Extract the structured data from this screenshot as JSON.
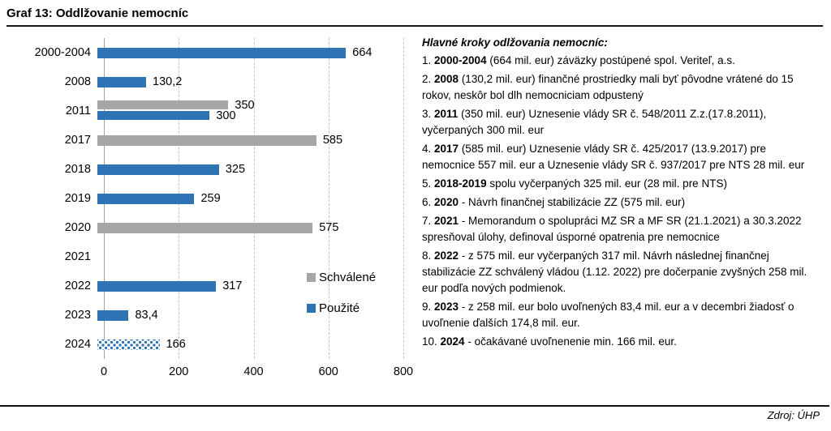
{
  "page": {
    "title": "Graf 13: Oddlžovanie nemocníc",
    "source": "Zdroj: ÚHP"
  },
  "chart_data": {
    "type": "bar",
    "orientation": "horizontal",
    "title": "Graf 13: Oddlžovanie nemocníc",
    "categories": [
      "2000-2004",
      "2008",
      "2011",
      "2017",
      "2018",
      "2019",
      "2020",
      "2021",
      "2022",
      "2023",
      "2024"
    ],
    "series": [
      {
        "name": "Schválené",
        "color": "#A6A6A6",
        "values": [
          null,
          null,
          350,
          585,
          null,
          null,
          575,
          null,
          null,
          null,
          null
        ],
        "labels": [
          null,
          null,
          "350",
          "585",
          null,
          null,
          "575",
          null,
          null,
          null,
          null
        ]
      },
      {
        "name": "Použité",
        "color": "#2E74B5",
        "values": [
          664,
          130.2,
          300,
          null,
          325,
          259,
          null,
          null,
          317,
          83.4,
          166
        ],
        "labels": [
          "664",
          "130,2",
          "300",
          null,
          "325",
          "259",
          null,
          null,
          "317",
          "83,4",
          "166"
        ]
      }
    ],
    "xlim": [
      0,
      800
    ],
    "xticks": [
      "0",
      "200",
      "400",
      "600",
      "800"
    ],
    "grid": "vertical-dashed",
    "legend_position": "inside-right",
    "pattern_bar": {
      "category": "2024",
      "series": "Použité",
      "style": "dotted"
    }
  },
  "notes": {
    "heading": "Hlavné kroky odlžovania nemocníc:",
    "items": [
      {
        "prefix": "1. ",
        "year": "2000-2004",
        "text": " (664 mil. eur) záväzky postúpené spol. Veriteľ, a.s."
      },
      {
        "prefix": "2. ",
        "year": "2008",
        "text": " (130,2 mil. eur) finančné prostriedky mali byť pôvodne vrátené do 15 rokov, neskôr bol dlh nemocniciam odpustený"
      },
      {
        "prefix": "3. ",
        "year": "2011",
        "text": " (350 mil. eur) Uznesenie vlády SR č. 548/2011 Z.z.(17.8.2011), vyčerpaných 300 mil. eur"
      },
      {
        "prefix": "4. ",
        "year": "2017",
        "text": " (585 mil. eur) Uznesenie vlády SR č. 425/2017 (13.9.2017) pre nemocnice 557 mil. eur a Uznesenie vlády SR č. 937/2017 pre NTS 28 mil. eur"
      },
      {
        "prefix": "5. ",
        "year": "2018-2019",
        "text": " spolu vyčerpaných 325 mil. eur (28 mil. pre NTS)"
      },
      {
        "prefix": "6. ",
        "year": "2020",
        "text": " - Návrh finančnej stabilizácie ZZ (575 mil. eur)"
      },
      {
        "prefix": "7. ",
        "year": "2021",
        "text": " - Memorandum o spolupráci MZ SR a MF SR (21.1.2021) a 30.3.2022 spresňoval úlohy, definoval úsporné opatrenia pre nemocnice"
      },
      {
        "prefix": "8. ",
        "year": "2022",
        "text": " - z 575 mil. eur vyčerpaných 317 mil. Návrh následnej finančnej stabilizácie ZZ schválený vládou (1.12. 2022) pre dočerpanie zvyšných 258 mil. eur podľa nových podmienok."
      },
      {
        "prefix": "9. ",
        "year": "2023",
        "text": " - z 258 mil. eur bolo uvoľnených 83,4 mil. eur a v decembri žiadosť o uvoľnenie ďalších 174,8 mil. eur."
      },
      {
        "prefix": "10. ",
        "year": "2024",
        "text": " - očakávané uvoľnenenie min. 166 mil. eur."
      }
    ]
  }
}
